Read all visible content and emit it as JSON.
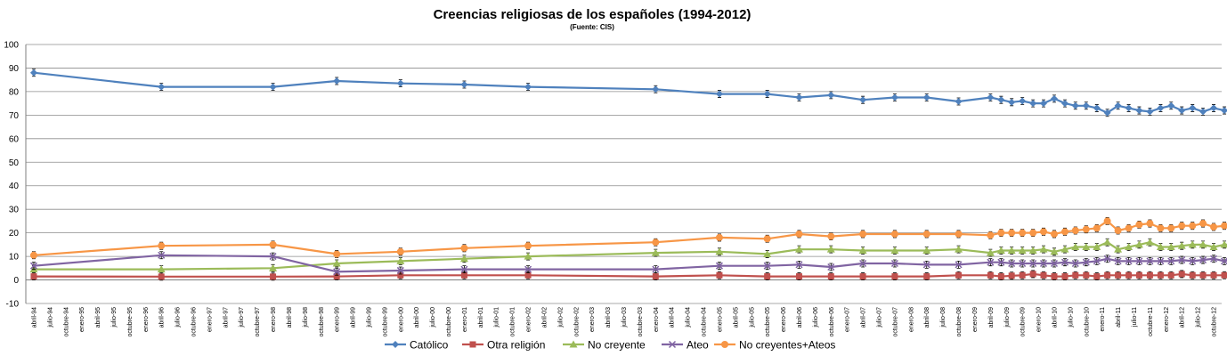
{
  "chart_data": {
    "type": "line",
    "title": "Creencias religiosas de los españoles (1994-2012)",
    "subtitle": "(Fuente: CIS)",
    "xlabel": "",
    "ylabel": "",
    "ylim": [
      -10,
      100
    ],
    "yticks": [
      -10,
      0,
      10,
      20,
      30,
      40,
      50,
      60,
      70,
      80,
      90,
      100
    ],
    "grid": true,
    "legend_position": "bottom",
    "categories": [
      "abril-94",
      "julio-94",
      "octubre-94",
      "enero-95",
      "abril-95",
      "julio-95",
      "octubre-95",
      "enero-96",
      "abril-96",
      "julio-96",
      "octubre-96",
      "enero-97",
      "abril-97",
      "julio-97",
      "octubre-97",
      "enero-98",
      "abril-98",
      "julio-98",
      "octubre-98",
      "enero-99",
      "abril-99",
      "julio-99",
      "octubre-99",
      "enero-00",
      "abril-00",
      "julio-00",
      "octubre-00",
      "enero-01",
      "abril-01",
      "julio-01",
      "octubre-01",
      "enero-02",
      "abril-02",
      "julio-02",
      "octubre-02",
      "enero-03",
      "abril-03",
      "julio-03",
      "octubre-03",
      "enero-04",
      "abril-04",
      "julio-04",
      "octubre-04",
      "enero-05",
      "abril-05",
      "julio-05",
      "octubre-05",
      "enero-06",
      "abril-06",
      "julio-06",
      "octubre-06",
      "enero-07",
      "abril-07",
      "julio-07",
      "octubre-07",
      "enero-08",
      "abril-08",
      "julio-08",
      "octubre-08",
      "enero-09",
      "abril-09",
      "julio-09",
      "octubre-09",
      "enero-10",
      "abril-10",
      "julio-10",
      "octubre-10",
      "enero-11",
      "abril-11",
      "julio-11",
      "octubre-11",
      "enero-12",
      "abril-12",
      "julio-12",
      "octubre-12"
    ],
    "series": [
      {
        "name": "Católico",
        "color": "#4F81BD",
        "marker": "diamond",
        "points": [
          [
            0,
            88
          ],
          [
            8,
            82
          ],
          [
            15,
            82
          ],
          [
            19,
            84.5
          ],
          [
            23,
            83.5
          ],
          [
            27,
            83
          ],
          [
            31,
            82
          ],
          [
            39,
            81
          ],
          [
            43,
            79
          ],
          [
            46,
            79
          ],
          [
            48,
            77.5
          ],
          [
            50,
            78.5
          ],
          [
            52,
            76.5
          ],
          [
            54,
            77.5
          ],
          [
            56,
            77.5
          ],
          [
            58,
            75.8
          ],
          [
            60,
            77.5
          ],
          [
            60.67,
            76.5
          ],
          [
            61.33,
            75.5
          ],
          [
            62,
            76
          ],
          [
            62.67,
            75
          ],
          [
            63.33,
            75
          ],
          [
            64,
            77
          ],
          [
            64.67,
            75
          ],
          [
            65.33,
            74
          ],
          [
            66,
            74
          ],
          [
            66.67,
            73
          ],
          [
            67.33,
            71
          ],
          [
            68,
            74
          ],
          [
            68.67,
            73
          ],
          [
            69.33,
            72
          ],
          [
            70,
            71.5
          ],
          [
            70.67,
            73
          ],
          [
            71.33,
            74
          ],
          [
            72,
            72
          ],
          [
            72.67,
            73
          ],
          [
            73.33,
            71.5
          ],
          [
            74,
            73
          ],
          [
            74.67,
            72
          ],
          [
            75.33,
            72
          ]
        ]
      },
      {
        "name": "Otra religión",
        "color": "#C0504D",
        "marker": "square",
        "points": [
          [
            0,
            1.5
          ],
          [
            8,
            1.4
          ],
          [
            15,
            1.4
          ],
          [
            19,
            1.5
          ],
          [
            23,
            2
          ],
          [
            27,
            2
          ],
          [
            31,
            2
          ],
          [
            39,
            1.5
          ],
          [
            43,
            2
          ],
          [
            46,
            1.5
          ],
          [
            48,
            1.5
          ],
          [
            50,
            1.5
          ],
          [
            52,
            1.5
          ],
          [
            54,
            1.5
          ],
          [
            56,
            1.5
          ],
          [
            58,
            2
          ],
          [
            60,
            2
          ],
          [
            60.67,
            1.5
          ],
          [
            61.33,
            1.8
          ],
          [
            62,
            2
          ],
          [
            62.67,
            2.5
          ],
          [
            63.33,
            2
          ],
          [
            64,
            1.5
          ],
          [
            64.67,
            1.5
          ],
          [
            65.33,
            2
          ],
          [
            66,
            2
          ],
          [
            66.67,
            1.5
          ],
          [
            67.33,
            2
          ],
          [
            68,
            2
          ],
          [
            68.67,
            2
          ],
          [
            69.33,
            2
          ],
          [
            70,
            2
          ],
          [
            70.67,
            2
          ],
          [
            71.33,
            2
          ],
          [
            72,
            2.5
          ],
          [
            72.67,
            2
          ],
          [
            73.33,
            2
          ],
          [
            74,
            2
          ],
          [
            74.67,
            2
          ],
          [
            75.33,
            2
          ]
        ]
      },
      {
        "name": "No creyente",
        "color": "#9BBB59",
        "marker": "triangle",
        "points": [
          [
            0,
            4.5
          ],
          [
            8,
            4.5
          ],
          [
            15,
            5
          ],
          [
            19,
            7
          ],
          [
            23,
            8
          ],
          [
            27,
            9
          ],
          [
            31,
            10
          ],
          [
            39,
            11.5
          ],
          [
            43,
            12
          ],
          [
            46,
            11
          ],
          [
            48,
            13
          ],
          [
            50,
            13
          ],
          [
            52,
            12.5
          ],
          [
            54,
            12.5
          ],
          [
            56,
            12.5
          ],
          [
            58,
            13
          ],
          [
            60,
            11.5
          ],
          [
            60.67,
            12.5
          ],
          [
            61.33,
            12.5
          ],
          [
            62,
            12.5
          ],
          [
            62.67,
            12.5
          ],
          [
            63.33,
            13
          ],
          [
            64,
            12
          ],
          [
            64.67,
            13
          ],
          [
            65.33,
            14
          ],
          [
            66,
            14
          ],
          [
            66.67,
            14
          ],
          [
            67.33,
            16
          ],
          [
            68,
            13
          ],
          [
            68.67,
            14
          ],
          [
            69.33,
            15
          ],
          [
            70,
            16
          ],
          [
            70.67,
            14
          ],
          [
            71.33,
            14
          ],
          [
            72,
            14.5
          ],
          [
            72.67,
            15
          ],
          [
            73.33,
            15
          ],
          [
            74,
            14
          ],
          [
            74.67,
            15
          ],
          [
            75.33,
            15
          ]
        ]
      },
      {
        "name": "Ateo",
        "color": "#8064A2",
        "marker": "x",
        "points": [
          [
            0,
            6
          ],
          [
            8,
            10.5
          ],
          [
            15,
            10
          ],
          [
            19,
            3.5
          ],
          [
            23,
            4
          ],
          [
            27,
            4.5
          ],
          [
            31,
            4.5
          ],
          [
            39,
            4.5
          ],
          [
            43,
            6
          ],
          [
            46,
            6
          ],
          [
            48,
            6.5
          ],
          [
            50,
            5.5
          ],
          [
            52,
            7
          ],
          [
            54,
            7
          ],
          [
            56,
            6.5
          ],
          [
            58,
            6.5
          ],
          [
            60,
            7.5
          ],
          [
            60.67,
            7.5
          ],
          [
            61.33,
            7
          ],
          [
            62,
            7
          ],
          [
            62.67,
            7
          ],
          [
            63.33,
            7
          ],
          [
            64,
            7
          ],
          [
            64.67,
            7.5
          ],
          [
            65.33,
            7
          ],
          [
            66,
            7.5
          ],
          [
            66.67,
            8
          ],
          [
            67.33,
            9
          ],
          [
            68,
            8
          ],
          [
            68.67,
            8
          ],
          [
            69.33,
            8
          ],
          [
            70,
            8
          ],
          [
            70.67,
            8
          ],
          [
            71.33,
            8
          ],
          [
            72,
            8.5
          ],
          [
            72.67,
            8
          ],
          [
            73.33,
            8.5
          ],
          [
            74,
            9
          ],
          [
            74.67,
            8
          ],
          [
            75.33,
            9
          ]
        ]
      },
      {
        "name": "No creyentes+Ateos",
        "color": "#F79646",
        "marker": "circle",
        "points": [
          [
            0,
            10.5
          ],
          [
            8,
            14.5
          ],
          [
            15,
            15
          ],
          [
            19,
            11
          ],
          [
            23,
            12
          ],
          [
            27,
            13.5
          ],
          [
            31,
            14.5
          ],
          [
            39,
            16
          ],
          [
            43,
            18
          ],
          [
            46,
            17.5
          ],
          [
            48,
            19.5
          ],
          [
            50,
            18.5
          ],
          [
            52,
            19.5
          ],
          [
            54,
            19.5
          ],
          [
            56,
            19.5
          ],
          [
            58,
            19.5
          ],
          [
            60,
            19
          ],
          [
            60.67,
            20
          ],
          [
            61.33,
            20
          ],
          [
            62,
            20
          ],
          [
            62.67,
            20
          ],
          [
            63.33,
            20.5
          ],
          [
            64,
            19.5
          ],
          [
            64.67,
            20.5
          ],
          [
            65.33,
            21
          ],
          [
            66,
            21.5
          ],
          [
            66.67,
            22
          ],
          [
            67.33,
            25
          ],
          [
            68,
            21
          ],
          [
            68.67,
            22
          ],
          [
            69.33,
            23.5
          ],
          [
            70,
            24
          ],
          [
            70.67,
            22
          ],
          [
            71.33,
            22
          ],
          [
            72,
            23
          ],
          [
            72.67,
            23
          ],
          [
            73.33,
            24
          ],
          [
            74,
            22.5
          ],
          [
            74.67,
            23
          ],
          [
            75.33,
            24.5
          ]
        ]
      }
    ]
  }
}
